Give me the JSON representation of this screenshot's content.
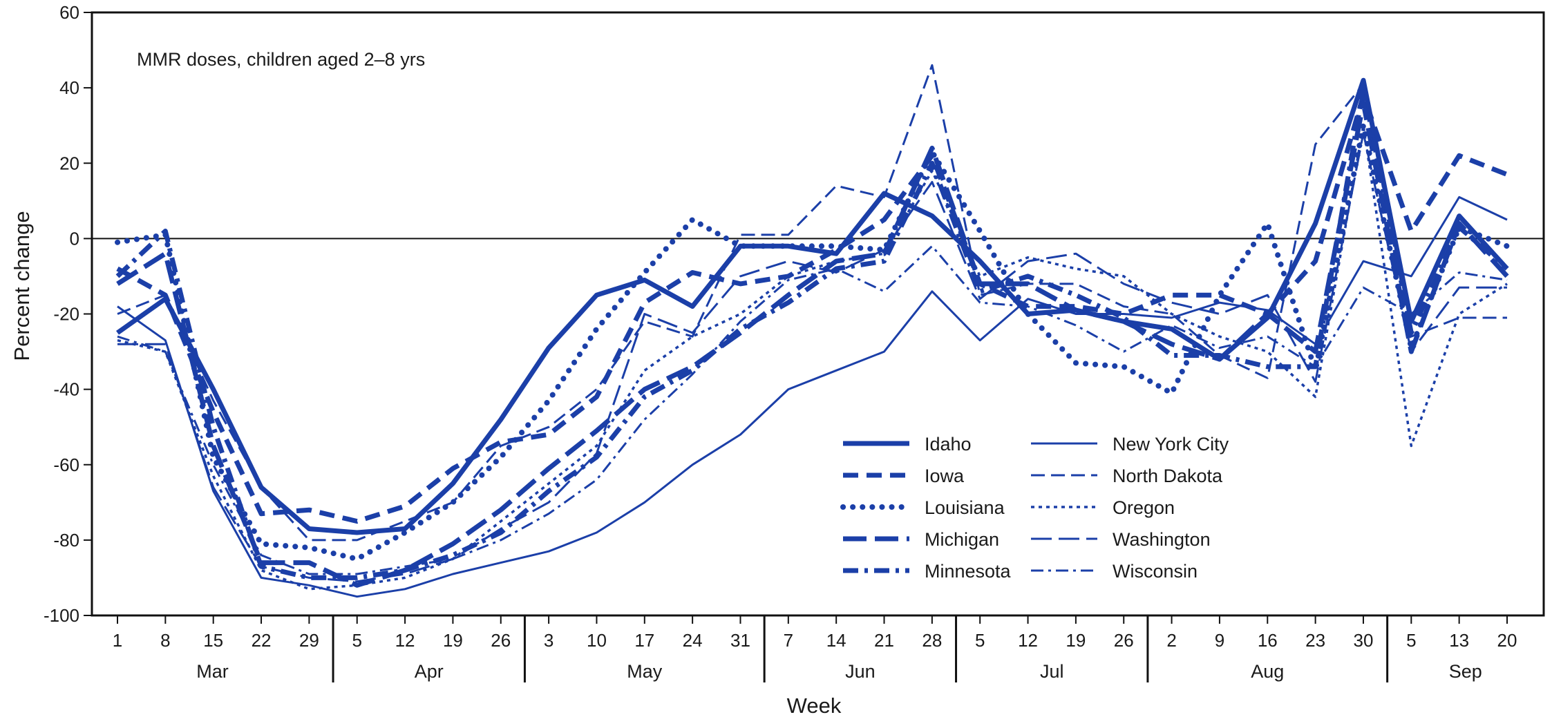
{
  "chart_data": {
    "type": "line",
    "annotation": "MMR doses, children aged 2–8 yrs",
    "xlabel": "Week",
    "ylabel": "Percent change",
    "ylim": [
      -100,
      60
    ],
    "yticks": [
      60,
      40,
      20,
      0,
      -20,
      -40,
      -60,
      -80,
      -100
    ],
    "reference_line": 0,
    "grid": false,
    "legend_position": "lower-center",
    "color": "#1B3FA8",
    "x": [
      "1",
      "8",
      "15",
      "22",
      "29",
      "5",
      "12",
      "19",
      "26",
      "3",
      "10",
      "17",
      "24",
      "31",
      "7",
      "14",
      "21",
      "28",
      "5",
      "12",
      "19",
      "26",
      "2",
      "9",
      "16",
      "23",
      "30",
      "5",
      "13",
      "20"
    ],
    "months": [
      {
        "label": "Mar",
        "start": 0,
        "end": 4
      },
      {
        "label": "Apr",
        "start": 5,
        "end": 8
      },
      {
        "label": "May",
        "start": 9,
        "end": 13
      },
      {
        "label": "Jun",
        "start": 14,
        "end": 17
      },
      {
        "label": "Jul",
        "start": 18,
        "end": 21
      },
      {
        "label": "Aug",
        "start": 22,
        "end": 26
      },
      {
        "label": "Sep",
        "start": 27,
        "end": 29
      }
    ],
    "series": [
      {
        "name": "Idaho",
        "style": "solid-thick",
        "values": [
          -25,
          -16,
          -40,
          -66,
          -77,
          -78,
          -77,
          -65,
          -48,
          -29,
          -15,
          -11,
          -18,
          -2,
          -2,
          -4,
          12,
          6,
          -6,
          -20,
          -19,
          -22,
          -24,
          -32,
          -21,
          4,
          42,
          -22,
          6,
          -8
        ]
      },
      {
        "name": "Iowa",
        "style": "dash-thick",
        "values": [
          -8,
          -15,
          -46,
          -73,
          -72,
          -75,
          -71,
          -61,
          -54,
          -52,
          -42,
          -17,
          -9,
          -12,
          -10,
          -3,
          5,
          22,
          -12,
          -18,
          -18,
          -20,
          -15,
          -15,
          -20,
          -6,
          38,
          2,
          22,
          17
        ]
      },
      {
        "name": "Louisiana",
        "style": "dot-thick",
        "values": [
          -1,
          1,
          -58,
          -81,
          -82,
          -85,
          -78,
          -70,
          -58,
          -43,
          -24,
          -9,
          5,
          -2,
          -2,
          -2,
          -3,
          23,
          2,
          -20,
          -33,
          -34,
          -41,
          -15,
          4,
          -35,
          30,
          -29,
          3,
          -2
        ]
      },
      {
        "name": "Michigan",
        "style": "longdash-thick",
        "values": [
          -12,
          -4,
          -55,
          -86,
          -86,
          -92,
          -88,
          -81,
          -72,
          -61,
          -51,
          -40,
          -34,
          -25,
          -15,
          -6,
          -4,
          24,
          -12,
          -12,
          -19,
          -22,
          -28,
          -32,
          -20,
          -30,
          36,
          -30,
          4,
          -10
        ]
      },
      {
        "name": "Minnesota",
        "style": "dashdot-thick",
        "values": [
          -10,
          2,
          -50,
          -87,
          -90,
          -90,
          -88,
          -84,
          -78,
          -67,
          -58,
          -42,
          -35,
          -24,
          -17,
          -8,
          -6,
          20,
          -14,
          -10,
          -15,
          -21,
          -31,
          -31,
          -34,
          -34,
          40,
          -25,
          3,
          -8
        ]
      },
      {
        "name": "New York City",
        "style": "solid-thin",
        "values": [
          -18,
          -27,
          -67,
          -90,
          -92,
          -95,
          -93,
          -89,
          -86,
          -83,
          -78,
          -70,
          -60,
          -52,
          -40,
          -35,
          -30,
          -14,
          -27,
          -16,
          -20,
          -20,
          -21,
          -17,
          -19,
          -28,
          -6,
          -10,
          11,
          5
        ]
      },
      {
        "name": "North Dakota",
        "style": "dash-thin",
        "values": [
          -20,
          -15,
          -43,
          -66,
          -80,
          -80,
          -75,
          -70,
          -55,
          -50,
          -40,
          -22,
          -26,
          1,
          1,
          14,
          11,
          46,
          -15,
          -12,
          -12,
          -18,
          -20,
          -31,
          -37,
          25,
          41,
          -26,
          -21,
          -21
        ]
      },
      {
        "name": "Oregon",
        "style": "dot-thin",
        "values": [
          -27,
          -30,
          -63,
          -88,
          -93,
          -92,
          -90,
          -85,
          -75,
          -65,
          -55,
          -35,
          -26,
          -20,
          -10,
          -6,
          -4,
          18,
          -10,
          -5,
          -8,
          -10,
          -20,
          -26,
          -30,
          -42,
          30,
          -55,
          -20,
          -12
        ]
      },
      {
        "name": "Washington",
        "style": "longdash-thin",
        "values": [
          -28,
          -28,
          -66,
          -87,
          -90,
          -91,
          -89,
          -85,
          -77,
          -70,
          -57,
          -20,
          -25,
          -10,
          -6,
          -9,
          -3,
          15,
          -16,
          -6,
          -4,
          -12,
          -17,
          -20,
          -15,
          -38,
          28,
          -30,
          -13,
          -13
        ]
      },
      {
        "name": "Wisconsin",
        "style": "dashdot-thin",
        "values": [
          -26,
          -30,
          -60,
          -84,
          -89,
          -89,
          -87,
          -85,
          -80,
          -73,
          -64,
          -48,
          -36,
          -22,
          -11,
          -8,
          -14,
          -2,
          -17,
          -18,
          -23,
          -30,
          -23,
          -29,
          -26,
          -34,
          -13,
          -20,
          -9,
          -11
        ]
      }
    ]
  }
}
